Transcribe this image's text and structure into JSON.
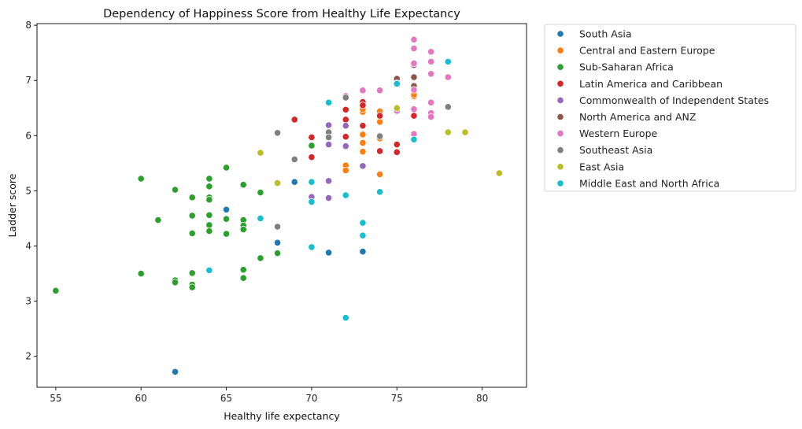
{
  "chart_data": {
    "type": "scatter",
    "title": "Dependency of Happiness Score from Healthy Life Expectancy",
    "xlabel": "Healthy life expectancy",
    "ylabel": "Ladder score",
    "xlim": [
      53.9,
      82.6
    ],
    "ylim": [
      1.44,
      8.03
    ],
    "xticks": [
      55,
      60,
      65,
      70,
      75,
      80
    ],
    "yticks": [
      2,
      3,
      4,
      5,
      6,
      7,
      8
    ],
    "grid": false,
    "legend_position": "outside-top-right",
    "series": [
      {
        "name": "South Asia",
        "color": "#1f77b4",
        "x": [
          62,
          65,
          68,
          69,
          71,
          73
        ],
        "y": [
          1.72,
          4.66,
          4.06,
          5.16,
          3.88,
          3.9
        ]
      },
      {
        "name": "Central and Eastern Europe",
        "color": "#ff7f0e",
        "x": [
          72,
          72,
          73,
          73,
          73,
          73,
          73,
          74,
          74,
          74,
          74,
          75,
          76,
          76
        ],
        "y": [
          5.46,
          5.37,
          5.71,
          5.87,
          6.02,
          6.43,
          6.48,
          5.3,
          5.95,
          6.25,
          6.44,
          6.44,
          6.71,
          6.74
        ]
      },
      {
        "name": "Sub-Saharan Africa",
        "color": "#2ca02c",
        "x": [
          55,
          60,
          60,
          61,
          62,
          62,
          62,
          63,
          63,
          63,
          63,
          63,
          63,
          64,
          64,
          64,
          64,
          64,
          64,
          64,
          64,
          65,
          65,
          65,
          66,
          66,
          66,
          66,
          66,
          66,
          67,
          67,
          68,
          70
        ],
        "y": [
          3.19,
          5.22,
          3.5,
          4.47,
          5.02,
          3.38,
          3.34,
          4.88,
          4.55,
          4.23,
          3.51,
          3.3,
          3.25,
          5.22,
          5.08,
          4.88,
          4.84,
          4.56,
          4.38,
          4.27,
          4.27,
          5.42,
          4.49,
          4.22,
          5.11,
          4.47,
          4.37,
          4.3,
          3.57,
          3.42,
          4.97,
          3.78,
          3.87,
          5.82
        ]
      },
      {
        "name": "Latin America and Caribbean",
        "color": "#d62728",
        "x": [
          69,
          70,
          70,
          72,
          72,
          72,
          72,
          73,
          73,
          73,
          74,
          74,
          75,
          75,
          75,
          76
        ],
        "y": [
          6.29,
          5.97,
          5.61,
          6.71,
          6.47,
          6.29,
          5.98,
          6.61,
          6.55,
          6.18,
          6.36,
          5.72,
          7.04,
          5.84,
          5.7,
          6.36
        ]
      },
      {
        "name": "Commonwealth of Independent States",
        "color": "#9467bd",
        "x": [
          70,
          71,
          71,
          71,
          71,
          72,
          72,
          73
        ],
        "y": [
          4.89,
          6.19,
          5.84,
          5.18,
          4.87,
          6.18,
          5.81,
          5.45
        ]
      },
      {
        "name": "North America and ANZ",
        "color": "#8c564b",
        "x": [
          75,
          76,
          76,
          76
        ],
        "y": [
          7.03,
          7.28,
          7.06,
          6.9
        ]
      },
      {
        "name": "Western Europe",
        "color": "#e377c2",
        "x": [
          72,
          73,
          74,
          75,
          75,
          76,
          76,
          76,
          76,
          76,
          76,
          77,
          77,
          77,
          77,
          77,
          77,
          78
        ],
        "y": [
          6.72,
          6.82,
          6.82,
          6.95,
          6.45,
          7.74,
          7.58,
          7.31,
          6.83,
          6.48,
          6.03,
          7.52,
          7.34,
          7.12,
          6.6,
          6.41,
          6.34,
          7.06
        ]
      },
      {
        "name": "Southeast Asia",
        "color": "#7f7f7f",
        "x": [
          68,
          68,
          69,
          71,
          71,
          72,
          74,
          78
        ],
        "y": [
          6.05,
          4.35,
          5.57,
          6.06,
          5.97,
          6.69,
          5.99,
          6.52
        ]
      },
      {
        "name": "East Asia",
        "color": "#bcbd22",
        "x": [
          67,
          68,
          75,
          78,
          79,
          81
        ],
        "y": [
          5.69,
          5.14,
          6.5,
          6.06,
          6.06,
          5.32
        ]
      },
      {
        "name": "Middle East and North Africa",
        "color": "#17becf",
        "x": [
          64,
          67,
          70,
          70,
          70,
          71,
          72,
          72,
          73,
          73,
          74,
          75,
          76,
          78
        ],
        "y": [
          3.56,
          4.5,
          5.16,
          4.8,
          3.98,
          6.6,
          4.92,
          2.7,
          4.42,
          4.19,
          4.98,
          6.94,
          5.93,
          7.34
        ]
      }
    ]
  }
}
